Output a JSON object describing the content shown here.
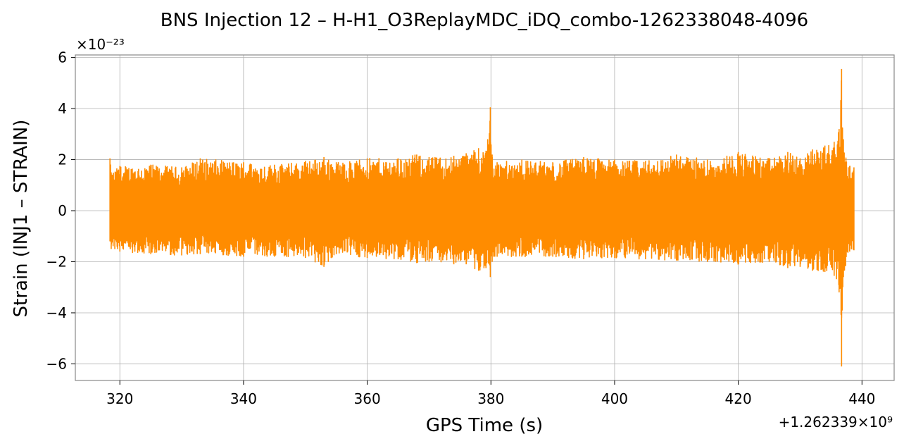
{
  "chart_data": {
    "type": "line",
    "title": "BNS Injection 12 – H-H1_O3ReplayMDC_iDQ_combo-1262338048-4096",
    "xlabel": "GPS Time (s)",
    "ylabel": "Strain (INJ1 – STRAIN)",
    "x_offset_label": "+1.262339×10⁹",
    "y_scale_label": "×10⁻²³",
    "xlim": [
      312.8,
      445.2
    ],
    "ylim": [
      -6.65,
      6.1
    ],
    "x_ticks": [
      320,
      340,
      360,
      380,
      400,
      420,
      440
    ],
    "x_tick_labels": [
      "320",
      "340",
      "360",
      "380",
      "400",
      "420",
      "440"
    ],
    "y_ticks": [
      -6,
      -4,
      -2,
      0,
      2,
      4,
      6
    ],
    "y_tick_labels": [
      "−6",
      "−4",
      "−2",
      "0",
      "2",
      "4",
      "6"
    ],
    "grid": true,
    "legend": "none",
    "series": [
      {
        "color": "#ff8c00",
        "x": [
          318.4,
          318.6,
          320,
          325,
          330,
          333,
          340,
          345,
          350,
          353,
          355,
          360,
          365,
          368,
          370,
          374,
          376,
          378,
          379.2,
          379.9,
          380.2,
          381,
          385,
          390,
          395,
          400,
          405,
          410,
          415,
          420,
          425,
          428,
          430,
          432,
          434,
          435.5,
          436.3,
          436.7,
          437,
          438,
          438.7
        ],
        "y_max": [
          2.05,
          1.5,
          1.75,
          1.8,
          1.7,
          2.05,
          1.9,
          1.8,
          1.95,
          2.1,
          1.9,
          2.05,
          2.05,
          2.2,
          2.1,
          2.15,
          2.25,
          2.45,
          2.35,
          4.05,
          2.2,
          1.9,
          2.0,
          1.9,
          2.1,
          2.0,
          1.95,
          2.2,
          2.0,
          2.3,
          2.05,
          2.3,
          2.05,
          2.4,
          2.55,
          2.7,
          3.2,
          5.55,
          2.8,
          1.75,
          1.7
        ],
        "y_min": [
          -1.2,
          -1.5,
          -1.6,
          -1.7,
          -1.75,
          -1.7,
          -1.8,
          -1.8,
          -1.85,
          -2.2,
          -1.7,
          -1.85,
          -1.9,
          -2.05,
          -2.0,
          -2.1,
          -2.1,
          -2.35,
          -2.25,
          -2.6,
          -2.0,
          -1.8,
          -1.8,
          -1.8,
          -1.9,
          -1.85,
          -1.9,
          -1.95,
          -2.0,
          -2.1,
          -2.0,
          -2.25,
          -2.2,
          -2.35,
          -2.4,
          -2.55,
          -3.2,
          -6.1,
          -2.6,
          -1.6,
          -1.55
        ]
      }
    ]
  }
}
